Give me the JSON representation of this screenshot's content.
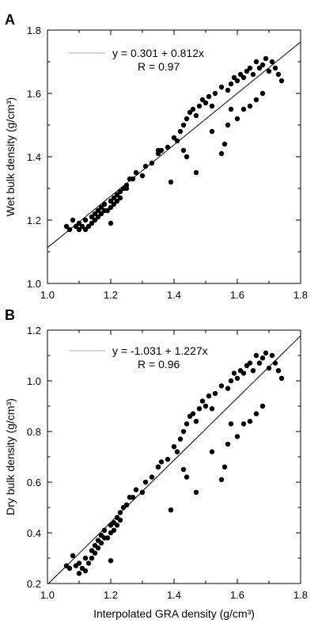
{
  "chart_data": [
    {
      "type": "scatter",
      "panel_label": "A",
      "title": "",
      "xlabel": "",
      "ylabel": "Wet bulk density (g/cm³)",
      "xlim": [
        1.0,
        1.8
      ],
      "ylim": [
        1.0,
        1.8
      ],
      "x_ticks": [
        "1.0",
        "1.2",
        "1.4",
        "1.6",
        "1.8"
      ],
      "y_ticks": [
        "1.0",
        "1.2",
        "1.4",
        "1.6",
        "1.8"
      ],
      "fit_line": {
        "intercept": 0.301,
        "slope": 0.812
      },
      "legend": {
        "equation": "y = 0.301 + 0.812x",
        "r_value": "R = 0.97",
        "placement": "top-left"
      },
      "grid": false,
      "points": [
        [
          1.06,
          1.18
        ],
        [
          1.07,
          1.17
        ],
        [
          1.08,
          1.2
        ],
        [
          1.09,
          1.18
        ],
        [
          1.1,
          1.17
        ],
        [
          1.1,
          1.19
        ],
        [
          1.11,
          1.18
        ],
        [
          1.12,
          1.17
        ],
        [
          1.12,
          1.2
        ],
        [
          1.13,
          1.18
        ],
        [
          1.14,
          1.21
        ],
        [
          1.14,
          1.19
        ],
        [
          1.15,
          1.22
        ],
        [
          1.15,
          1.2
        ],
        [
          1.16,
          1.23
        ],
        [
          1.16,
          1.21
        ],
        [
          1.17,
          1.24
        ],
        [
          1.17,
          1.22
        ],
        [
          1.18,
          1.25
        ],
        [
          1.18,
          1.23
        ],
        [
          1.19,
          1.23
        ],
        [
          1.2,
          1.24
        ],
        [
          1.2,
          1.26
        ],
        [
          1.21,
          1.25
        ],
        [
          1.21,
          1.27
        ],
        [
          1.22,
          1.28
        ],
        [
          1.22,
          1.26
        ],
        [
          1.23,
          1.29
        ],
        [
          1.23,
          1.27
        ],
        [
          1.24,
          1.3
        ],
        [
          1.25,
          1.31
        ],
        [
          1.26,
          1.33
        ],
        [
          1.27,
          1.33
        ],
        [
          1.28,
          1.35
        ],
        [
          1.3,
          1.34
        ],
        [
          1.31,
          1.37
        ],
        [
          1.33,
          1.38
        ],
        [
          1.35,
          1.41
        ],
        [
          1.36,
          1.42
        ],
        [
          1.38,
          1.43
        ],
        [
          1.4,
          1.46
        ],
        [
          1.41,
          1.45
        ],
        [
          1.42,
          1.48
        ],
        [
          1.43,
          1.5
        ],
        [
          1.44,
          1.52
        ],
        [
          1.45,
          1.54
        ],
        [
          1.46,
          1.55
        ],
        [
          1.47,
          1.53
        ],
        [
          1.48,
          1.56
        ],
        [
          1.49,
          1.58
        ],
        [
          1.5,
          1.57
        ],
        [
          1.51,
          1.59
        ],
        [
          1.52,
          1.56
        ],
        [
          1.53,
          1.6
        ],
        [
          1.55,
          1.62
        ],
        [
          1.57,
          1.61
        ],
        [
          1.58,
          1.63
        ],
        [
          1.59,
          1.65
        ],
        [
          1.6,
          1.64
        ],
        [
          1.61,
          1.66
        ],
        [
          1.62,
          1.65
        ],
        [
          1.63,
          1.67
        ],
        [
          1.64,
          1.68
        ],
        [
          1.65,
          1.66
        ],
        [
          1.66,
          1.7
        ],
        [
          1.67,
          1.68
        ],
        [
          1.68,
          1.69
        ],
        [
          1.69,
          1.71
        ],
        [
          1.7,
          1.67
        ],
        [
          1.71,
          1.7
        ],
        [
          1.72,
          1.68
        ],
        [
          1.73,
          1.66
        ],
        [
          1.74,
          1.64
        ],
        [
          1.56,
          1.44
        ],
        [
          1.55,
          1.41
        ],
        [
          1.47,
          1.35
        ],
        [
          1.39,
          1.32
        ],
        [
          1.2,
          1.19
        ],
        [
          1.44,
          1.4
        ],
        [
          1.52,
          1.48
        ],
        [
          1.57,
          1.5
        ],
        [
          1.6,
          1.52
        ],
        [
          1.62,
          1.55
        ],
        [
          1.64,
          1.56
        ],
        [
          1.66,
          1.58
        ],
        [
          1.68,
          1.6
        ],
        [
          1.58,
          1.55
        ],
        [
          1.35,
          1.42
        ],
        [
          1.43,
          1.42
        ],
        [
          1.25,
          1.3
        ]
      ]
    },
    {
      "type": "scatter",
      "panel_label": "B",
      "title": "",
      "xlabel": "Interpolated GRA density (g/cm³)",
      "ylabel": "Dry bulk density (g/cm³)",
      "xlim": [
        1.0,
        1.8
      ],
      "ylim": [
        0.2,
        1.2
      ],
      "x_ticks": [
        "1.0",
        "1.2",
        "1.4",
        "1.6",
        "1.8"
      ],
      "y_ticks": [
        "0.2",
        "0.4",
        "0.6",
        "0.8",
        "1.0",
        "1.2"
      ],
      "fit_line": {
        "intercept": -1.031,
        "slope": 1.227
      },
      "legend": {
        "equation": "y = -1.031 + 1.227x",
        "r_value": "R = 0.96",
        "placement": "top-left"
      },
      "grid": false,
      "points": [
        [
          1.06,
          0.27
        ],
        [
          1.07,
          0.26
        ],
        [
          1.08,
          0.31
        ],
        [
          1.09,
          0.27
        ],
        [
          1.1,
          0.24
        ],
        [
          1.1,
          0.28
        ],
        [
          1.11,
          0.26
        ],
        [
          1.12,
          0.25
        ],
        [
          1.12,
          0.3
        ],
        [
          1.13,
          0.28
        ],
        [
          1.14,
          0.33
        ],
        [
          1.14,
          0.3
        ],
        [
          1.15,
          0.35
        ],
        [
          1.15,
          0.32
        ],
        [
          1.16,
          0.37
        ],
        [
          1.16,
          0.34
        ],
        [
          1.17,
          0.39
        ],
        [
          1.17,
          0.36
        ],
        [
          1.18,
          0.41
        ],
        [
          1.18,
          0.38
        ],
        [
          1.19,
          0.38
        ],
        [
          1.2,
          0.4
        ],
        [
          1.2,
          0.43
        ],
        [
          1.21,
          0.41
        ],
        [
          1.21,
          0.44
        ],
        [
          1.22,
          0.46
        ],
        [
          1.22,
          0.43
        ],
        [
          1.23,
          0.48
        ],
        [
          1.23,
          0.45
        ],
        [
          1.24,
          0.5
        ],
        [
          1.25,
          0.51
        ],
        [
          1.26,
          0.54
        ],
        [
          1.27,
          0.54
        ],
        [
          1.28,
          0.57
        ],
        [
          1.3,
          0.56
        ],
        [
          1.31,
          0.6
        ],
        [
          1.33,
          0.62
        ],
        [
          1.35,
          0.66
        ],
        [
          1.36,
          0.68
        ],
        [
          1.38,
          0.69
        ],
        [
          1.4,
          0.74
        ],
        [
          1.41,
          0.72
        ],
        [
          1.42,
          0.77
        ],
        [
          1.43,
          0.8
        ],
        [
          1.44,
          0.83
        ],
        [
          1.45,
          0.86
        ],
        [
          1.46,
          0.87
        ],
        [
          1.47,
          0.84
        ],
        [
          1.48,
          0.89
        ],
        [
          1.49,
          0.92
        ],
        [
          1.5,
          0.9
        ],
        [
          1.51,
          0.94
        ],
        [
          1.52,
          0.89
        ],
        [
          1.53,
          0.95
        ],
        [
          1.55,
          0.98
        ],
        [
          1.57,
          0.97
        ],
        [
          1.58,
          1.0
        ],
        [
          1.59,
          1.03
        ],
        [
          1.6,
          1.01
        ],
        [
          1.61,
          1.04
        ],
        [
          1.62,
          1.03
        ],
        [
          1.63,
          1.06
        ],
        [
          1.64,
          1.07
        ],
        [
          1.65,
          1.04
        ],
        [
          1.66,
          1.1
        ],
        [
          1.67,
          1.07
        ],
        [
          1.68,
          1.09
        ],
        [
          1.69,
          1.11
        ],
        [
          1.7,
          1.05
        ],
        [
          1.71,
          1.1
        ],
        [
          1.72,
          1.07
        ],
        [
          1.73,
          1.04
        ],
        [
          1.74,
          1.01
        ],
        [
          1.56,
          0.66
        ],
        [
          1.55,
          0.61
        ],
        [
          1.47,
          0.56
        ],
        [
          1.39,
          0.49
        ],
        [
          1.2,
          0.29
        ],
        [
          1.44,
          0.62
        ],
        [
          1.52,
          0.72
        ],
        [
          1.57,
          0.75
        ],
        [
          1.6,
          0.78
        ],
        [
          1.62,
          0.83
        ],
        [
          1.64,
          0.84
        ],
        [
          1.66,
          0.87
        ],
        [
          1.68,
          0.9
        ],
        [
          1.58,
          0.83
        ],
        [
          1.35,
          0.66
        ],
        [
          1.43,
          0.65
        ],
        [
          1.25,
          0.51
        ]
      ]
    }
  ]
}
